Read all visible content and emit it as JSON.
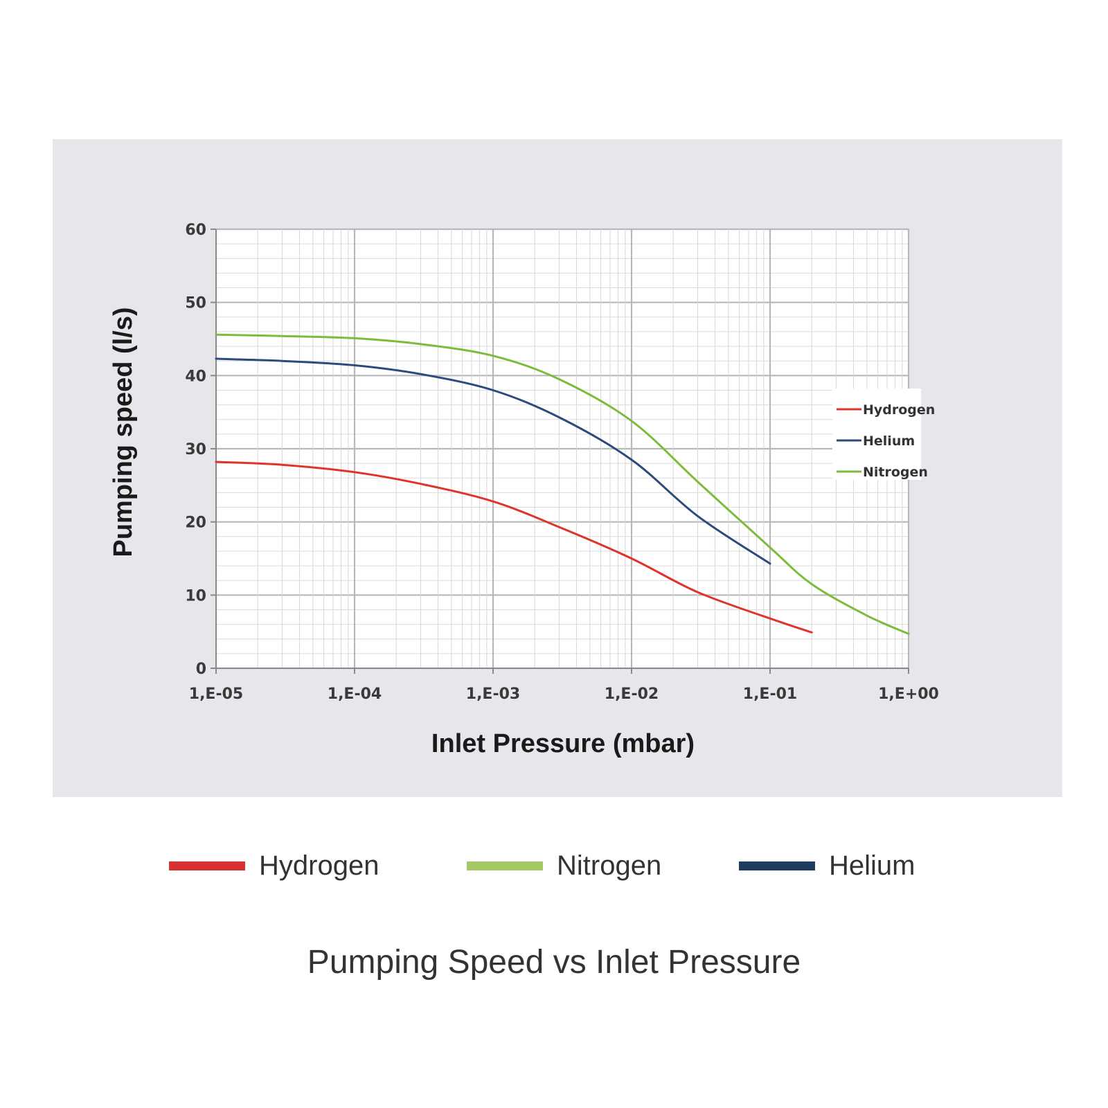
{
  "chart_data": {
    "type": "line",
    "xlabel": "Inlet Pressure (mbar)",
    "ylabel": "Pumping speed (l/s)",
    "x_scale": "log",
    "xlim": [
      1e-05,
      1
    ],
    "ylim": [
      0,
      60
    ],
    "x_tick_values": [
      1e-05,
      0.0001,
      0.001,
      0.01,
      0.1,
      1
    ],
    "x_tick_labels": [
      "1,E-05",
      "1,E-04",
      "1,E-03",
      "1,E-02",
      "1,E-01",
      "1,E+00"
    ],
    "y_ticks": [
      0,
      10,
      20,
      30,
      40,
      50,
      60
    ],
    "grid": true,
    "legend_position": "right",
    "series": [
      {
        "name": "Hydrogen",
        "color": "#e0332a",
        "x": [
          1e-05,
          3e-05,
          0.0001,
          0.0003,
          0.001,
          0.003,
          0.01,
          0.03,
          0.1,
          0.2
        ],
        "y": [
          28.2,
          27.8,
          26.8,
          25.2,
          22.8,
          19.3,
          15.0,
          10.4,
          6.8,
          4.9
        ]
      },
      {
        "name": "Helium",
        "color": "#2c4a7c",
        "x": [
          1e-05,
          3e-05,
          0.0001,
          0.0003,
          0.001,
          0.003,
          0.01,
          0.03,
          0.1
        ],
        "y": [
          42.3,
          42.0,
          41.4,
          40.2,
          38.0,
          34.3,
          28.5,
          20.8,
          14.3
        ]
      },
      {
        "name": "Nitrogen",
        "color": "#7dbb3c",
        "x": [
          1e-05,
          3e-05,
          0.0001,
          0.0003,
          0.001,
          0.003,
          0.01,
          0.03,
          0.1,
          0.2,
          0.5,
          1
        ],
        "y": [
          45.6,
          45.4,
          45.1,
          44.3,
          42.7,
          39.5,
          33.8,
          25.5,
          16.5,
          11.5,
          7.2,
          4.7
        ]
      }
    ]
  },
  "bottom_legend": [
    {
      "label": "Hydrogen",
      "color": "#d73232"
    },
    {
      "label": "Nitrogen",
      "color": "#a3c864"
    },
    {
      "label": "Helium",
      "color": "#1e3c5f"
    }
  ],
  "caption": "Pumping Speed vs Inlet Pressure"
}
